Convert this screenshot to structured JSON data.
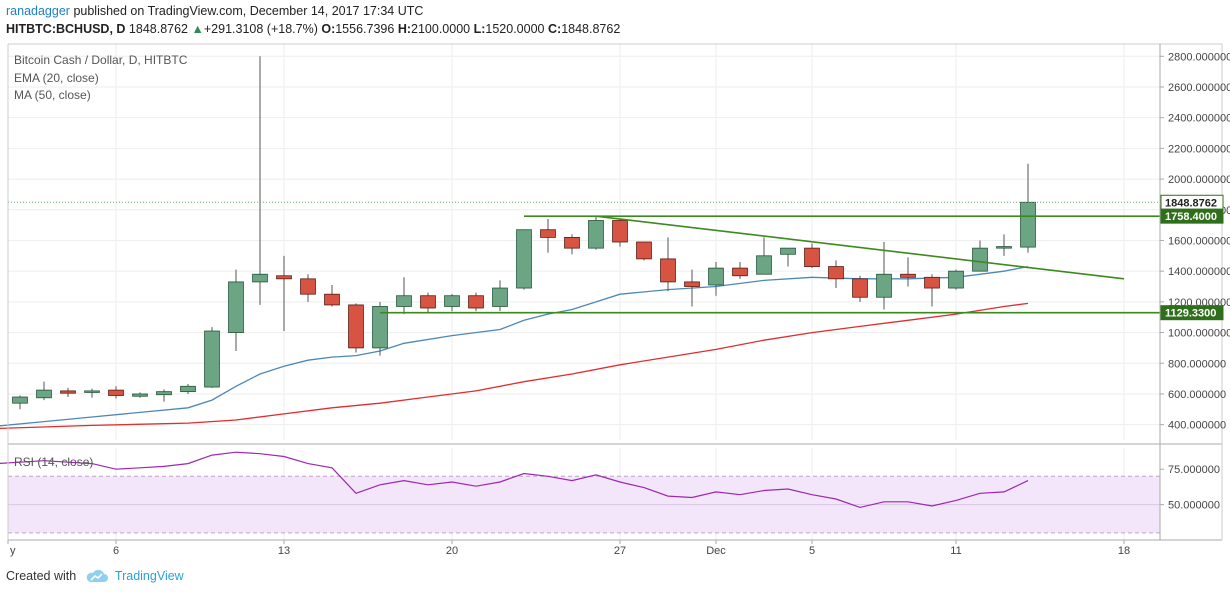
{
  "header": {
    "author": "ranadagger",
    "published": "published on TradingView.com, December 14, 2017 17:34 UTC",
    "symbol": "HITBTC:BCHUSD, D",
    "last": "1848.8762",
    "change": "+291.3108 (+18.7%)",
    "o_label": "O:",
    "o": "1556.7396",
    "h_label": "H:",
    "h": "2100.0000",
    "l_label": "L:",
    "l": "1520.0000",
    "c_label": "C:",
    "c": "1848.8762"
  },
  "footer": {
    "created_with": "Created with",
    "brand": "TradingView"
  },
  "chart_data": {
    "type": "candlestick",
    "title": "Bitcoin Cash / Dollar, D, HITBTC",
    "legend": [
      "EMA (20, close)",
      "MA (50, close)"
    ],
    "legend_position": "top-left",
    "y_ticks": [
      "400.000000",
      "600.000000",
      "800.000000",
      "1000.000000",
      "1200.000000",
      "1400.000000",
      "1600.000000",
      "1800.000000",
      "2000.000000",
      "2200.000000",
      "2400.000000",
      "2600.000000",
      "2800.000000"
    ],
    "y_tick_values": [
      400,
      600,
      800,
      1000,
      1200,
      1400,
      1600,
      1800,
      2000,
      2200,
      2400,
      2600,
      2800
    ],
    "x_ticks": [
      {
        "label": "y",
        "day": -3.5
      },
      {
        "label": "6",
        "day": 1
      },
      {
        "label": "13",
        "day": 8
      },
      {
        "label": "20",
        "day": 15
      },
      {
        "label": "27",
        "day": 22
      },
      {
        "label": "Dec",
        "day": 26
      },
      {
        "label": "5",
        "day": 30
      },
      {
        "label": "11",
        "day": 36
      },
      {
        "label": "18",
        "day": 43
      }
    ],
    "day_range": [
      -3.5,
      44.5
    ],
    "ylim": [
      300,
      2880
    ],
    "grid": true,
    "candles": [
      {
        "day": -3,
        "o": 540,
        "h": 590,
        "l": 500,
        "c": 580
      },
      {
        "day": -2,
        "o": 575,
        "h": 680,
        "l": 560,
        "c": 625
      },
      {
        "day": -1,
        "o": 620,
        "h": 640,
        "l": 580,
        "c": 605
      },
      {
        "day": 0,
        "o": 610,
        "h": 635,
        "l": 575,
        "c": 620
      },
      {
        "day": 1,
        "o": 625,
        "h": 650,
        "l": 570,
        "c": 590
      },
      {
        "day": 2,
        "o": 585,
        "h": 610,
        "l": 575,
        "c": 600
      },
      {
        "day": 3,
        "o": 595,
        "h": 630,
        "l": 550,
        "c": 615
      },
      {
        "day": 4,
        "o": 615,
        "h": 665,
        "l": 600,
        "c": 650
      },
      {
        "day": 5,
        "o": 645,
        "h": 1035,
        "l": 640,
        "c": 1010
      },
      {
        "day": 6,
        "o": 1000,
        "h": 1410,
        "l": 880,
        "c": 1330
      },
      {
        "day": 7,
        "o": 1330,
        "h": 2800,
        "l": 1180,
        "c": 1380
      },
      {
        "day": 8,
        "o": 1370,
        "h": 1500,
        "l": 1010,
        "c": 1350
      },
      {
        "day": 9,
        "o": 1350,
        "h": 1380,
        "l": 1200,
        "c": 1250
      },
      {
        "day": 10,
        "o": 1250,
        "h": 1310,
        "l": 1170,
        "c": 1180
      },
      {
        "day": 11,
        "o": 1180,
        "h": 1190,
        "l": 870,
        "c": 900
      },
      {
        "day": 12,
        "o": 900,
        "h": 1200,
        "l": 850,
        "c": 1170
      },
      {
        "day": 13,
        "o": 1170,
        "h": 1360,
        "l": 1120,
        "c": 1240
      },
      {
        "day": 14,
        "o": 1240,
        "h": 1260,
        "l": 1130,
        "c": 1160
      },
      {
        "day": 15,
        "o": 1170,
        "h": 1250,
        "l": 1140,
        "c": 1240
      },
      {
        "day": 16,
        "o": 1240,
        "h": 1260,
        "l": 1140,
        "c": 1160
      },
      {
        "day": 17,
        "o": 1170,
        "h": 1340,
        "l": 1140,
        "c": 1290
      },
      {
        "day": 18,
        "o": 1290,
        "h": 1670,
        "l": 1280,
        "c": 1670
      },
      {
        "day": 19,
        "o": 1670,
        "h": 1740,
        "l": 1520,
        "c": 1620
      },
      {
        "day": 20,
        "o": 1620,
        "h": 1640,
        "l": 1510,
        "c": 1550
      },
      {
        "day": 21,
        "o": 1550,
        "h": 1760,
        "l": 1540,
        "c": 1730
      },
      {
        "day": 22,
        "o": 1730,
        "h": 1740,
        "l": 1560,
        "c": 1590
      },
      {
        "day": 23,
        "o": 1590,
        "h": 1580,
        "l": 1470,
        "c": 1480
      },
      {
        "day": 24,
        "o": 1480,
        "h": 1620,
        "l": 1270,
        "c": 1330
      },
      {
        "day": 25,
        "o": 1330,
        "h": 1410,
        "l": 1170,
        "c": 1300
      },
      {
        "day": 26,
        "o": 1310,
        "h": 1460,
        "l": 1240,
        "c": 1420
      },
      {
        "day": 27,
        "o": 1420,
        "h": 1460,
        "l": 1350,
        "c": 1370
      },
      {
        "day": 28,
        "o": 1380,
        "h": 1620,
        "l": 1380,
        "c": 1500
      },
      {
        "day": 29,
        "o": 1510,
        "h": 1540,
        "l": 1430,
        "c": 1550
      },
      {
        "day": 30,
        "o": 1550,
        "h": 1580,
        "l": 1420,
        "c": 1430
      },
      {
        "day": 31,
        "o": 1430,
        "h": 1470,
        "l": 1290,
        "c": 1350
      },
      {
        "day": 32,
        "o": 1350,
        "h": 1370,
        "l": 1200,
        "c": 1230
      },
      {
        "day": 33,
        "o": 1230,
        "h": 1590,
        "l": 1150,
        "c": 1380
      },
      {
        "day": 34,
        "o": 1380,
        "h": 1490,
        "l": 1300,
        "c": 1360
      },
      {
        "day": 35,
        "o": 1360,
        "h": 1380,
        "l": 1170,
        "c": 1290
      },
      {
        "day": 36,
        "o": 1290,
        "h": 1410,
        "l": 1280,
        "c": 1400
      },
      {
        "day": 37,
        "o": 1400,
        "h": 1600,
        "l": 1400,
        "c": 1550
      },
      {
        "day": 38,
        "o": 1550,
        "h": 1640,
        "l": 1500,
        "c": 1560
      },
      {
        "day": 39,
        "o": 1556.7396,
        "h": 2100,
        "l": 1520,
        "c": 1848.8762
      }
    ],
    "ema_20": [
      {
        "day": -4,
        "v": 390
      },
      {
        "day": -2,
        "v": 420
      },
      {
        "day": 0,
        "v": 450
      },
      {
        "day": 2,
        "v": 480
      },
      {
        "day": 4,
        "v": 510
      },
      {
        "day": 5,
        "v": 560
      },
      {
        "day": 6,
        "v": 650
      },
      {
        "day": 7,
        "v": 730
      },
      {
        "day": 8,
        "v": 780
      },
      {
        "day": 9,
        "v": 820
      },
      {
        "day": 10,
        "v": 840
      },
      {
        "day": 11,
        "v": 850
      },
      {
        "day": 12,
        "v": 880
      },
      {
        "day": 13,
        "v": 930
      },
      {
        "day": 15,
        "v": 980
      },
      {
        "day": 17,
        "v": 1020
      },
      {
        "day": 18,
        "v": 1080
      },
      {
        "day": 19,
        "v": 1120
      },
      {
        "day": 20,
        "v": 1150
      },
      {
        "day": 21,
        "v": 1200
      },
      {
        "day": 22,
        "v": 1250
      },
      {
        "day": 24,
        "v": 1280
      },
      {
        "day": 26,
        "v": 1300
      },
      {
        "day": 28,
        "v": 1340
      },
      {
        "day": 30,
        "v": 1360
      },
      {
        "day": 32,
        "v": 1350
      },
      {
        "day": 34,
        "v": 1350
      },
      {
        "day": 36,
        "v": 1360
      },
      {
        "day": 38,
        "v": 1400
      },
      {
        "day": 39,
        "v": 1430
      }
    ],
    "ma_50": [
      {
        "day": -4,
        "v": 375
      },
      {
        "day": 0,
        "v": 395
      },
      {
        "day": 4,
        "v": 410
      },
      {
        "day": 6,
        "v": 430
      },
      {
        "day": 8,
        "v": 470
      },
      {
        "day": 10,
        "v": 510
      },
      {
        "day": 12,
        "v": 540
      },
      {
        "day": 14,
        "v": 580
      },
      {
        "day": 16,
        "v": 620
      },
      {
        "day": 18,
        "v": 680
      },
      {
        "day": 20,
        "v": 730
      },
      {
        "day": 22,
        "v": 790
      },
      {
        "day": 24,
        "v": 840
      },
      {
        "day": 26,
        "v": 890
      },
      {
        "day": 28,
        "v": 950
      },
      {
        "day": 30,
        "v": 1000
      },
      {
        "day": 32,
        "v": 1040
      },
      {
        "day": 34,
        "v": 1080
      },
      {
        "day": 36,
        "v": 1120
      },
      {
        "day": 38,
        "v": 1170
      },
      {
        "day": 39,
        "v": 1190
      }
    ],
    "trendlines": [
      {
        "type": "horizontal",
        "from_day": 18,
        "to_day": 46,
        "y": 1758.4
      },
      {
        "type": "horizontal",
        "from_day": 12,
        "to_day": 46,
        "y": 1129.33
      },
      {
        "type": "diagonal",
        "from_day": 21,
        "from_y": 1758.4,
        "to_day": 43,
        "to_y": 1350
      }
    ],
    "price_labels": [
      {
        "text": "1848.8762",
        "y": 1848.8762,
        "style": "last"
      },
      {
        "text": "1758.4000",
        "y": 1758.4,
        "style": "line"
      },
      {
        "text": "1129.3300",
        "y": 1129.33,
        "style": "line"
      }
    ],
    "rsi": {
      "title": "RSI (14, close)",
      "ticks": [
        "75.000000",
        "50.000000"
      ],
      "tick_values": [
        75,
        50
      ],
      "band": [
        30,
        70
      ],
      "ylim": [
        25,
        90
      ],
      "points": [
        {
          "day": -4,
          "v": 79
        },
        {
          "day": -3,
          "v": 80
        },
        {
          "day": -2,
          "v": 81
        },
        {
          "day": -1,
          "v": 80
        },
        {
          "day": 0,
          "v": 79
        },
        {
          "day": 1,
          "v": 75
        },
        {
          "day": 2,
          "v": 76
        },
        {
          "day": 3,
          "v": 77
        },
        {
          "day": 4,
          "v": 79
        },
        {
          "day": 5,
          "v": 85
        },
        {
          "day": 6,
          "v": 87
        },
        {
          "day": 7,
          "v": 86
        },
        {
          "day": 8,
          "v": 84
        },
        {
          "day": 9,
          "v": 79
        },
        {
          "day": 10,
          "v": 76
        },
        {
          "day": 11,
          "v": 58
        },
        {
          "day": 12,
          "v": 64
        },
        {
          "day": 13,
          "v": 67
        },
        {
          "day": 14,
          "v": 64
        },
        {
          "day": 15,
          "v": 66
        },
        {
          "day": 16,
          "v": 63
        },
        {
          "day": 17,
          "v": 66
        },
        {
          "day": 18,
          "v": 72
        },
        {
          "day": 19,
          "v": 70
        },
        {
          "day": 20,
          "v": 67
        },
        {
          "day": 21,
          "v": 71
        },
        {
          "day": 22,
          "v": 66
        },
        {
          "day": 23,
          "v": 62
        },
        {
          "day": 24,
          "v": 56
        },
        {
          "day": 25,
          "v": 55
        },
        {
          "day": 26,
          "v": 59
        },
        {
          "day": 27,
          "v": 57
        },
        {
          "day": 28,
          "v": 60
        },
        {
          "day": 29,
          "v": 61
        },
        {
          "day": 30,
          "v": 57
        },
        {
          "day": 31,
          "v": 54
        },
        {
          "day": 32,
          "v": 48
        },
        {
          "day": 33,
          "v": 52
        },
        {
          "day": 34,
          "v": 52
        },
        {
          "day": 35,
          "v": 49
        },
        {
          "day": 36,
          "v": 53
        },
        {
          "day": 37,
          "v": 58
        },
        {
          "day": 38,
          "v": 59
        },
        {
          "day": 39,
          "v": 67
        }
      ]
    },
    "colors": {
      "up": "#6ba583",
      "down": "#d75442",
      "up_border": "#225437",
      "down_border": "#5b1a13",
      "ema": "#4c88b7",
      "ma": "#e02d2d",
      "trendline": "#3c8a1e",
      "rsi": "#9c27b0",
      "rsi_band": "#f4e6fa",
      "grid": "#eeeeee",
      "label_bg": "#2f6f1b",
      "last_bg": "#ffffff"
    }
  }
}
